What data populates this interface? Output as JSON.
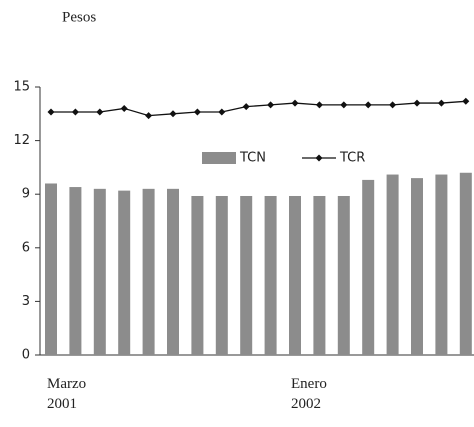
{
  "chart_data": {
    "type": "bar-line",
    "y_label": "Pesos",
    "categories": [
      "Marzo 2001",
      null,
      null,
      null,
      null,
      null,
      null,
      null,
      null,
      null,
      "Enero 2002",
      null,
      null,
      null,
      null,
      null,
      null,
      null
    ],
    "series": [
      {
        "name": "TCN",
        "type": "bar",
        "color": "#8c8c8c",
        "values": [
          9.6,
          9.4,
          9.3,
          9.2,
          9.3,
          9.3,
          8.9,
          8.9,
          8.9,
          8.9,
          8.9,
          8.9,
          8.9,
          9.8,
          10.1,
          9.9,
          10.1,
          10.2
        ]
      },
      {
        "name": "TCR",
        "type": "line",
        "color": "#111111",
        "values": [
          13.6,
          13.6,
          13.6,
          13.8,
          13.4,
          13.5,
          13.6,
          13.6,
          13.9,
          14.0,
          14.1,
          14.0,
          14.0,
          14.0,
          14.0,
          14.1,
          14.1,
          14.2
        ]
      }
    ],
    "ylim": [
      0,
      15
    ],
    "yticks": [
      0,
      3,
      6,
      9,
      12,
      15
    ]
  }
}
